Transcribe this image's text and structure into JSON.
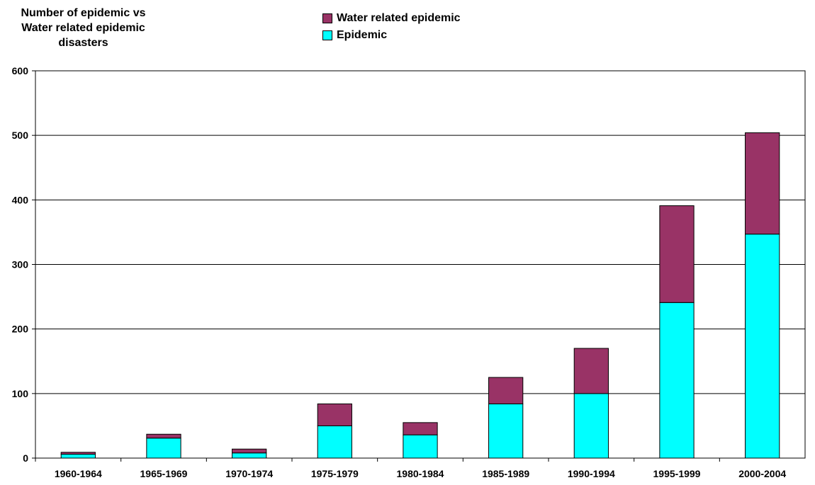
{
  "chart_data": {
    "type": "bar",
    "stacked": true,
    "title_lines": [
      "Number of epidemic vs",
      "Water related epidemic",
      "disasters"
    ],
    "categories": [
      "1960-1964",
      "1965-1969",
      "1970-1974",
      "1975-1979",
      "1980-1984",
      "1985-1989",
      "1990-1994",
      "1995-1999",
      "2000-2004"
    ],
    "series": [
      {
        "name": "Epidemic",
        "color": "#00FFFF",
        "values": [
          6,
          31,
          8,
          50,
          36,
          84,
          100,
          241,
          347
        ]
      },
      {
        "name": "Water related epidemic",
        "color": "#993366",
        "values": [
          3,
          6,
          6,
          34,
          19,
          41,
          70,
          150,
          157
        ]
      }
    ],
    "yticks": [
      0,
      100,
      200,
      300,
      400,
      500,
      600
    ],
    "ylim": [
      0,
      600
    ],
    "grid": true,
    "legend_position": "top-center"
  }
}
